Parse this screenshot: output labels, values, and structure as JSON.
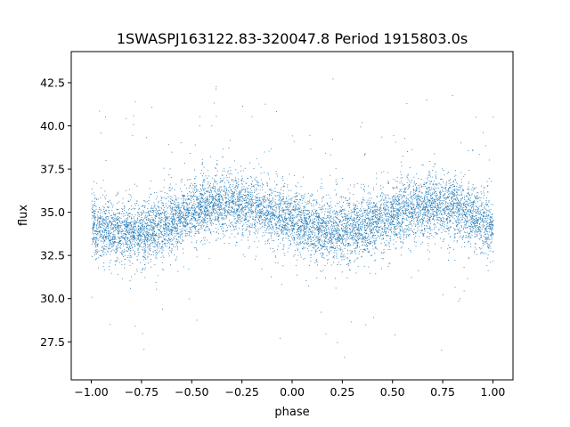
{
  "chart_data": {
    "type": "scatter",
    "title": "1SWASPJ163122.83-320047.8 Period 1915803.0s",
    "xlabel": "phase",
    "ylabel": "flux",
    "xlim": [
      -1.1,
      1.1
    ],
    "ylim": [
      25.3,
      44.3
    ],
    "grid": false,
    "point_color": "#1f77b4",
    "x_ticks": [
      -1.0,
      -0.75,
      -0.5,
      -0.25,
      0.0,
      0.25,
      0.5,
      0.75,
      1.0
    ],
    "x_tick_labels": [
      "−1.00",
      "−0.75",
      "−0.50",
      "−0.25",
      "0.00",
      "0.25",
      "0.50",
      "0.75",
      "1.00"
    ],
    "y_ticks": [
      27.5,
      30.0,
      32.5,
      35.0,
      37.5,
      40.0,
      42.5
    ],
    "y_tick_labels": [
      "27.5",
      "30.0",
      "32.5",
      "35.0",
      "37.5",
      "40.0",
      "42.5"
    ],
    "series": [
      {
        "x_range": [
          -1.0,
          1.0
        ],
        "mean_flux_profile": {
          "phase": [
            -1.0,
            -0.9,
            -0.8,
            -0.7,
            -0.6,
            -0.5,
            -0.4,
            -0.3,
            -0.2,
            -0.1,
            0.0,
            0.1,
            0.2,
            0.3,
            0.4,
            0.5,
            0.6,
            0.7,
            0.8,
            0.9,
            1.0
          ],
          "flux": [
            34.2,
            34.0,
            33.8,
            34.0,
            34.5,
            35.0,
            35.5,
            35.6,
            35.3,
            35.0,
            34.6,
            34.2,
            33.9,
            34.0,
            34.4,
            34.9,
            35.3,
            35.5,
            35.3,
            34.8,
            34.2
          ]
        },
        "typical_spread": 1.5,
        "flux_extent": [
          26.2,
          43.0
        ],
        "n_points_approx": 20000
      }
    ]
  }
}
